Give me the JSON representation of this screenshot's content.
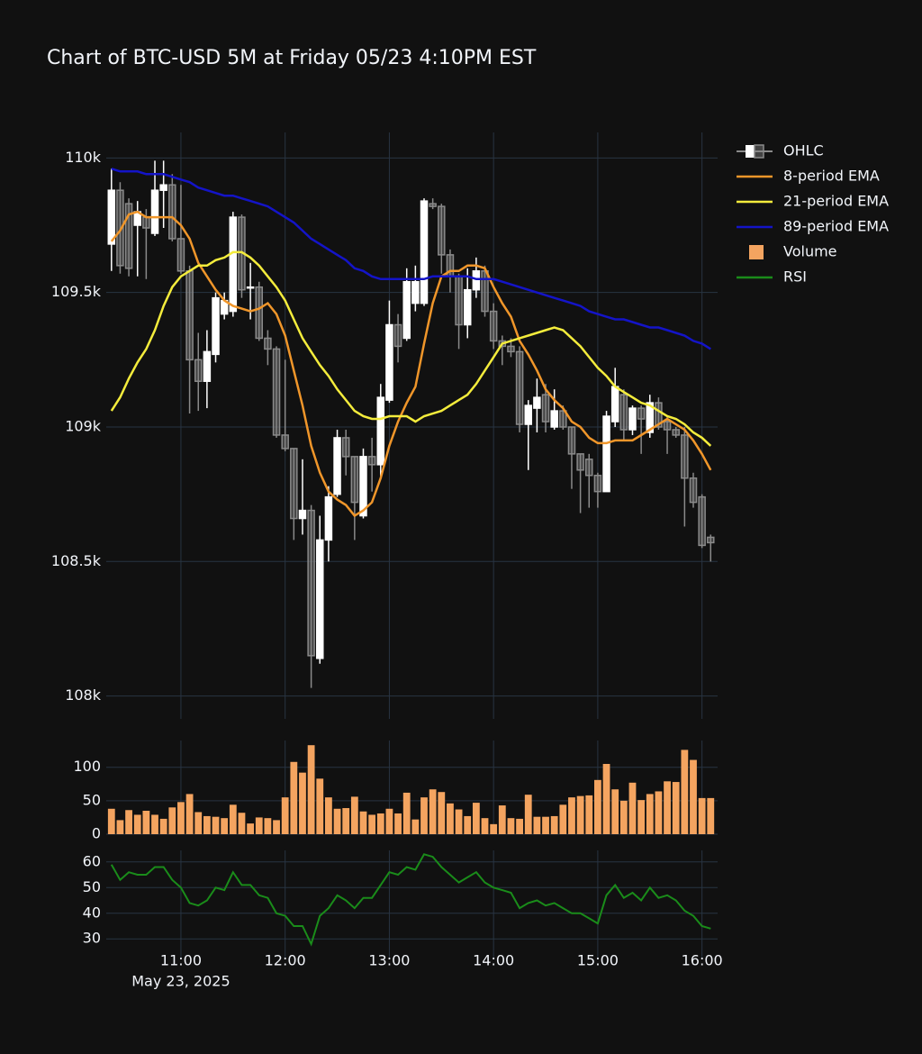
{
  "chart_data": {
    "type": "candlestick",
    "title": "Chart of BTC-USD 5M at Friday 05/23 4:10PM EST",
    "ohlc_name": "OHLC",
    "increasing_color": "#ffffff",
    "decreasing_color": "#8a8a8a",
    "grid": true,
    "legend": "top-right",
    "date_label": "May 23, 2025",
    "x": [
      "2025-05-23 10:20",
      "2025-05-23 10:25",
      "2025-05-23 10:30",
      "2025-05-23 10:35",
      "2025-05-23 10:40",
      "2025-05-23 10:45",
      "2025-05-23 10:50",
      "2025-05-23 10:55",
      "2025-05-23 11:00",
      "2025-05-23 11:05",
      "2025-05-23 11:10",
      "2025-05-23 11:15",
      "2025-05-23 11:20",
      "2025-05-23 11:25",
      "2025-05-23 11:30",
      "2025-05-23 11:35",
      "2025-05-23 11:40",
      "2025-05-23 11:45",
      "2025-05-23 11:50",
      "2025-05-23 11:55",
      "2025-05-23 12:00",
      "2025-05-23 12:05",
      "2025-05-23 12:10",
      "2025-05-23 12:15",
      "2025-05-23 12:20",
      "2025-05-23 12:25",
      "2025-05-23 12:30",
      "2025-05-23 12:35",
      "2025-05-23 12:40",
      "2025-05-23 12:45",
      "2025-05-23 12:50",
      "2025-05-23 12:55",
      "2025-05-23 13:00",
      "2025-05-23 13:05",
      "2025-05-23 13:10",
      "2025-05-23 13:15",
      "2025-05-23 13:20",
      "2025-05-23 13:25",
      "2025-05-23 13:30",
      "2025-05-23 13:35",
      "2025-05-23 13:40",
      "2025-05-23 13:45",
      "2025-05-23 13:50",
      "2025-05-23 13:55",
      "2025-05-23 14:00",
      "2025-05-23 14:05",
      "2025-05-23 14:10",
      "2025-05-23 14:15",
      "2025-05-23 14:20",
      "2025-05-23 14:25",
      "2025-05-23 14:30",
      "2025-05-23 14:35",
      "2025-05-23 14:40",
      "2025-05-23 14:45",
      "2025-05-23 14:50",
      "2025-05-23 14:55",
      "2025-05-23 15:00",
      "2025-05-23 15:05",
      "2025-05-23 15:10",
      "2025-05-23 15:15",
      "2025-05-23 15:20",
      "2025-05-23 15:25",
      "2025-05-23 15:30",
      "2025-05-23 15:35",
      "2025-05-23 15:40",
      "2025-05-23 15:45",
      "2025-05-23 15:50",
      "2025-05-23 15:55",
      "2025-05-23 16:00",
      "2025-05-23 16:05"
    ],
    "xlim": [
      "2025-05-23 10:17",
      "2025-05-23 16:09"
    ],
    "xticks": [
      {
        "value": "2025-05-23 11:00",
        "label": "11:00"
      },
      {
        "value": "2025-05-23 12:00",
        "label": "12:00"
      },
      {
        "value": "2025-05-23 13:00",
        "label": "13:00"
      },
      {
        "value": "2025-05-23 14:00",
        "label": "14:00"
      },
      {
        "value": "2025-05-23 15:00",
        "label": "15:00"
      },
      {
        "value": "2025-05-23 16:00",
        "label": "16:00"
      }
    ],
    "open": [
      109680,
      109880,
      109830,
      109750,
      109780,
      109720,
      109880,
      109900,
      109700,
      109580,
      109250,
      109170,
      109270,
      109420,
      109430,
      109780,
      109520,
      109520,
      109330,
      109290,
      108970,
      108920,
      108660,
      108690,
      108140,
      108580,
      108750,
      108960,
      108890,
      108670,
      108890,
      108860,
      109100,
      109380,
      109330,
      109460,
      109460,
      109830,
      109820,
      109640,
      109560,
      109380,
      109510,
      109580,
      109430,
      109320,
      109300,
      109280,
      109010,
      109070,
      109120,
      109000,
      109060,
      109000,
      108900,
      108880,
      108820,
      108760,
      109020,
      109120,
      108990,
      109070,
      108980,
      109090,
      109020,
      108990,
      108970,
      108810,
      108740,
      108590
    ],
    "high": [
      109960,
      109910,
      109850,
      109840,
      109810,
      109990,
      109990,
      109940,
      109900,
      109600,
      109350,
      109360,
      109500,
      109500,
      109800,
      109790,
      109610,
      109540,
      109360,
      109300,
      109250,
      108920,
      108880,
      108710,
      108670,
      108780,
      108990,
      108990,
      108890,
      108920,
      108960,
      109160,
      109470,
      109420,
      109590,
      109600,
      109850,
      109850,
      109830,
      109660,
      109570,
      109590,
      109630,
      109600,
      109460,
      109340,
      109330,
      109300,
      109100,
      109180,
      109160,
      109140,
      109080,
      109000,
      108900,
      108900,
      108830,
      109060,
      109220,
      109140,
      109080,
      109080,
      109120,
      109110,
      109040,
      109000,
      109000,
      108830,
      108750,
      108600
    ],
    "low": [
      109580,
      109570,
      109560,
      109560,
      109550,
      109710,
      109740,
      109690,
      109570,
      109050,
      109060,
      109070,
      109240,
      109400,
      109410,
      109480,
      109400,
      109320,
      109230,
      108960,
      108910,
      108580,
      108600,
      108030,
      108120,
      108500,
      108740,
      108820,
      108580,
      108660,
      108760,
      108810,
      109090,
      109240,
      109320,
      109430,
      109450,
      109810,
      109570,
      109500,
      109290,
      109330,
      109480,
      109410,
      109290,
      109230,
      109260,
      108980,
      108840,
      108980,
      108980,
      108990,
      108990,
      108770,
      108680,
      108700,
      108700,
      108760,
      109000,
      108950,
      108970,
      108900,
      108960,
      108990,
      108900,
      108960,
      108630,
      108700,
      108550,
      108500
    ],
    "close": [
      109880,
      109600,
      109590,
      109800,
      109740,
      109880,
      109900,
      109700,
      109580,
      109250,
      109170,
      109280,
      109480,
      109470,
      109780,
      109510,
      109520,
      109330,
      109290,
      108970,
      108920,
      108660,
      108690,
      108150,
      108580,
      108740,
      108960,
      108890,
      108720,
      108890,
      108860,
      109110,
      109380,
      109300,
      109540,
      109540,
      109840,
      109820,
      109640,
      109560,
      109380,
      109510,
      109580,
      109430,
      109320,
      109300,
      109280,
      109010,
      109080,
      109110,
      109020,
      109060,
      109000,
      108900,
      108840,
      108820,
      108760,
      109040,
      109150,
      108990,
      109070,
      109030,
      109090,
      109000,
      108990,
      108970,
      108810,
      108720,
      108560,
      108570
    ],
    "ylim": [
      107915,
      110095
    ],
    "yticks": [
      {
        "value": 108000,
        "label": "108k"
      },
      {
        "value": 108500,
        "label": "108.5k"
      },
      {
        "value": 109000,
        "label": "109k"
      },
      {
        "value": 109500,
        "label": "109.5k"
      },
      {
        "value": 110000,
        "label": "110k"
      }
    ],
    "series": [
      {
        "name": "8-period EMA",
        "color": "#f0962a",
        "values": [
          109690,
          109730,
          109790,
          109800,
          109780,
          109780,
          109780,
          109780,
          109750,
          109700,
          109610,
          109560,
          109510,
          109470,
          109450,
          109440,
          109430,
          109440,
          109460,
          109420,
          109340,
          109210,
          109080,
          108930,
          108830,
          108760,
          108730,
          108710,
          108670,
          108690,
          108720,
          108810,
          108930,
          109020,
          109090,
          109150,
          109310,
          109460,
          109560,
          109580,
          109580,
          109600,
          109600,
          109590,
          109520,
          109460,
          109410,
          109320,
          109270,
          109210,
          109140,
          109100,
          109070,
          109020,
          109000,
          108960,
          108940,
          108940,
          108950,
          108950,
          108950,
          108970,
          108990,
          109010,
          109030,
          109010,
          108990,
          108950,
          108900,
          108840
        ]
      },
      {
        "name": "21-period EMA",
        "color": "#f4ec3c",
        "values": [
          109060,
          109110,
          109180,
          109240,
          109290,
          109360,
          109450,
          109520,
          109560,
          109580,
          109600,
          109600,
          109620,
          109630,
          109650,
          109650,
          109630,
          109600,
          109560,
          109520,
          109470,
          109400,
          109330,
          109280,
          109230,
          109190,
          109140,
          109100,
          109060,
          109040,
          109030,
          109030,
          109040,
          109040,
          109040,
          109020,
          109040,
          109050,
          109060,
          109080,
          109100,
          109120,
          109160,
          109210,
          109260,
          109310,
          109320,
          109330,
          109340,
          109350,
          109360,
          109370,
          109360,
          109330,
          109300,
          109260,
          109220,
          109190,
          109150,
          109130,
          109110,
          109090,
          109080,
          109060,
          109040,
          109030,
          109010,
          108980,
          108960,
          108930
        ]
      },
      {
        "name": "89-period EMA",
        "color": "#1414c8",
        "values": [
          109960,
          109950,
          109950,
          109950,
          109940,
          109940,
          109940,
          109930,
          109920,
          109910,
          109890,
          109880,
          109870,
          109860,
          109860,
          109850,
          109840,
          109830,
          109820,
          109800,
          109780,
          109760,
          109730,
          109700,
          109680,
          109660,
          109640,
          109620,
          109590,
          109580,
          109560,
          109550,
          109550,
          109550,
          109550,
          109550,
          109550,
          109560,
          109560,
          109560,
          109560,
          109560,
          109550,
          109550,
          109550,
          109540,
          109530,
          109520,
          109510,
          109500,
          109490,
          109480,
          109470,
          109460,
          109450,
          109430,
          109420,
          109410,
          109400,
          109400,
          109390,
          109380,
          109370,
          109370,
          109360,
          109350,
          109340,
          109320,
          109310,
          109290
        ]
      }
    ],
    "volume": {
      "type": "bar",
      "name": "Volume",
      "color": "#f4a460",
      "values": [
        38,
        21,
        36,
        29,
        35,
        29,
        23,
        40,
        48,
        60,
        33,
        27,
        26,
        24,
        44,
        32,
        16,
        25,
        24,
        21,
        55,
        108,
        92,
        133,
        83,
        55,
        38,
        39,
        56,
        34,
        29,
        31,
        38,
        31,
        62,
        22,
        55,
        67,
        63,
        46,
        37,
        27,
        47,
        24,
        15,
        43,
        24,
        23,
        59,
        26,
        26,
        27,
        44,
        55,
        57,
        58,
        81,
        105,
        67,
        50,
        77,
        51,
        60,
        64,
        79,
        78,
        126,
        111,
        54,
        54
      ],
      "ylim": [
        0,
        140
      ],
      "yticks": [
        0,
        50,
        100
      ]
    },
    "rsi": {
      "type": "line",
      "name": "RSI",
      "color": "#1a8c1a",
      "values": [
        59,
        53,
        56,
        55,
        55,
        58,
        58,
        53,
        50,
        44,
        43,
        45,
        50,
        49,
        56,
        51,
        51,
        47,
        46,
        40,
        39,
        35,
        35,
        28,
        39,
        42,
        47,
        45,
        42,
        46,
        46,
        51,
        56,
        55,
        58,
        57,
        63,
        62,
        58,
        55,
        52,
        54,
        56,
        52,
        50,
        49,
        48,
        42,
        44,
        45,
        43,
        44,
        42,
        40,
        40,
        38,
        36,
        47,
        51,
        46,
        48,
        45,
        50,
        46,
        47,
        45,
        41,
        39,
        35,
        34
      ],
      "ylim": [
        22,
        64.5
      ],
      "yticks": [
        30,
        40,
        50,
        60
      ]
    }
  }
}
